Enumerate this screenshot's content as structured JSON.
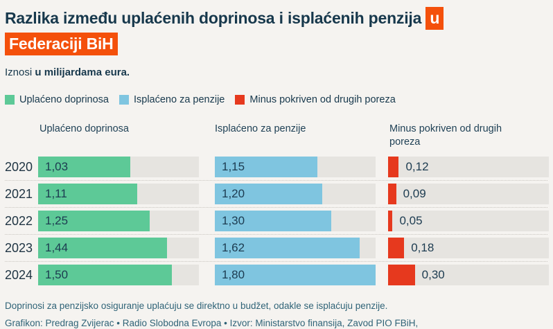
{
  "colors": {
    "background": "#f5f3f0",
    "text_dark": "#17384c",
    "text_note": "#2f6377",
    "highlight_orange": "#f4500b",
    "track_gray": "#e6e4e0"
  },
  "title": {
    "line1_plain": "Razlika između uplaćenih doprinosa i isplaćenih penzija",
    "line1_highlight": "u",
    "line2_highlight": "Federaciji BiH"
  },
  "subtitle": {
    "prefix": "Iznosi",
    "bold": "u milijardama eura."
  },
  "chart_data": {
    "type": "bar",
    "orientation": "horizontal",
    "title": "Razlika između uplaćenih doprinosa i isplaćenih penzija u Federaciji BiH",
    "unit": "milijarde eura",
    "max_scale": 1.8,
    "grid": false,
    "legend_position": "top",
    "categories": [
      "2020",
      "2021",
      "2022",
      "2023",
      "2024"
    ],
    "series": [
      {
        "name": "Uplaćeno doprinosa",
        "color": "#5dc997",
        "values": [
          1.03,
          1.11,
          1.25,
          1.44,
          1.5
        ],
        "labels": [
          "1,03",
          "1,11",
          "1,25",
          "1,44",
          "1,50"
        ],
        "label_position": "inside"
      },
      {
        "name": "Isplaćeno za penzije",
        "color": "#7fc5e0",
        "values": [
          1.15,
          1.2,
          1.3,
          1.62,
          1.8
        ],
        "labels": [
          "1,15",
          "1,20",
          "1,30",
          "1,62",
          "1,80"
        ],
        "label_position": "inside"
      },
      {
        "name": "Minus pokriven od drugih poreza",
        "color": "#e6391e",
        "values": [
          0.12,
          0.09,
          0.05,
          0.18,
          0.3
        ],
        "labels": [
          "0,12",
          "0,09",
          "0,05",
          "0,18",
          "0,30"
        ],
        "label_position": "outside"
      }
    ]
  },
  "footer": {
    "note": "Doprinosi za penzijsko osiguranje uplaćuju se direktno u budžet, odakle se isplaćuju penzije.",
    "credit": "Grafikon: Predrag Zvijerac • Radio Slobodna Evropa • Izvor: Ministarstvo finansija, Zavod PIO FBiH,"
  }
}
